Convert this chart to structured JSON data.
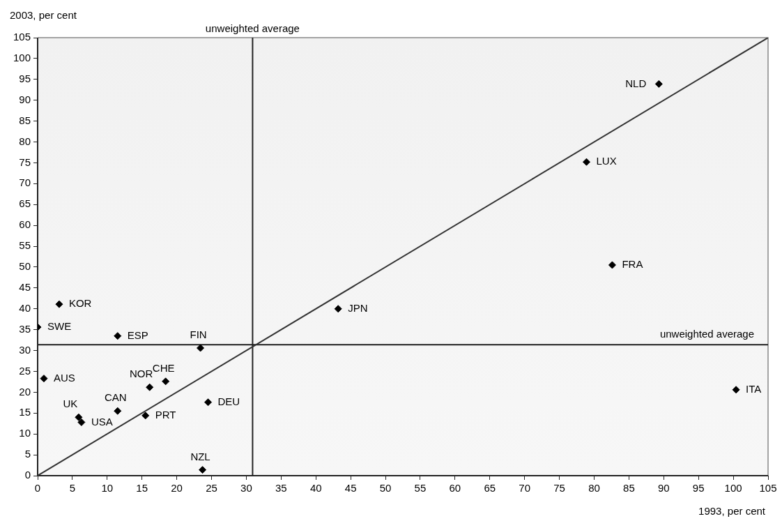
{
  "chart_data": {
    "type": "scatter",
    "xlabel": "1993, per cent",
    "ylabel": "2003, per cent",
    "marker": "diamond",
    "xlim": [
      0,
      105
    ],
    "ylim": [
      0,
      105
    ],
    "xticks": [
      0,
      5,
      10,
      15,
      20,
      25,
      30,
      35,
      40,
      45,
      50,
      55,
      60,
      65,
      70,
      75,
      80,
      85,
      90,
      95,
      100,
      105
    ],
    "yticks": [
      0,
      5,
      10,
      15,
      20,
      25,
      30,
      35,
      40,
      45,
      50,
      55,
      60,
      65,
      70,
      75,
      80,
      85,
      90,
      95,
      100,
      105
    ],
    "series": [
      {
        "color": "#000000",
        "x": [
          89.3,
          78.9,
          82.6,
          43.2,
          100.4,
          3.1,
          0,
          11.5,
          23.4,
          0.9,
          16.1,
          18.4,
          24.5,
          11.5,
          15.5,
          5.9,
          6.3,
          23.7
        ],
        "values": [
          93.9,
          75.2,
          50.5,
          40.0,
          20.6,
          41.1,
          35.6,
          33.5,
          30.6,
          23.3,
          21.2,
          22.6,
          17.6,
          15.5,
          14.4,
          14.0,
          12.8,
          1.4
        ],
        "value_labels": [
          "NLD",
          "LUX",
          "FRA",
          "JPN",
          "ITA",
          "KOR",
          "SWE",
          "ESP",
          "FIN",
          "AUS",
          "NOR",
          "CHE",
          "DEU",
          "CAN",
          "PRT",
          "UK",
          "USA",
          "NZL"
        ]
      },
      {
        "type": "line",
        "color": "#333333",
        "marker": "none",
        "x": [
          0,
          105
        ],
        "values": [
          0,
          105
        ]
      }
    ],
    "ref_lines": [
      {
        "axis": "x",
        "value": 30.9,
        "label": "unweighted average",
        "color": "#222222"
      },
      {
        "axis": "y",
        "value": 31.4,
        "label": "unweighted average",
        "color": "#222222"
      }
    ]
  }
}
